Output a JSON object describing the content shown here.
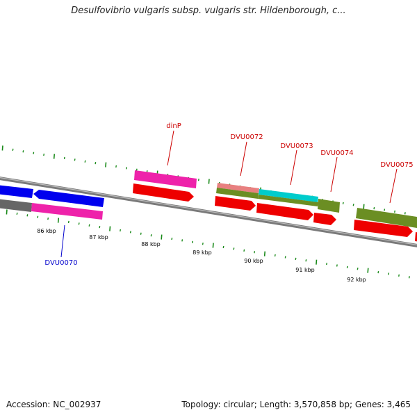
{
  "title": "Desulfovibrio vulgaris subsp. vulgaris str. Hildenborough, c...",
  "footer": {
    "accession": "Accession: NC_002937",
    "summary": "Topology: circular; Length: 3,570,858 bp; Genes: 3,465"
  },
  "colors": {
    "backbone": "#808080",
    "tick": "#1a8a1a",
    "gene_label": "#cc0000",
    "gene_label_blue": "#0000cc",
    "red": "#ee0000",
    "blue": "#0000ee",
    "magenta": "#ee22aa",
    "olive": "#6b8e23",
    "cyan": "#00cccc",
    "salmon": "#e88080",
    "gray": "#666666"
  },
  "scale_labels": [
    "86 kbp",
    "87 kbp",
    "88 kbp",
    "89 kbp",
    "90 kbp",
    "91 kbp",
    "92 kbp"
  ],
  "gene_labels": [
    {
      "name": "dinP",
      "color": "red"
    },
    {
      "name": "DVU0072",
      "color": "red"
    },
    {
      "name": "DVU0073",
      "color": "red"
    },
    {
      "name": "DVU0074",
      "color": "red"
    },
    {
      "name": "DVU0075",
      "color": "red"
    },
    {
      "name": "DVU0070",
      "color": "blue"
    }
  ]
}
